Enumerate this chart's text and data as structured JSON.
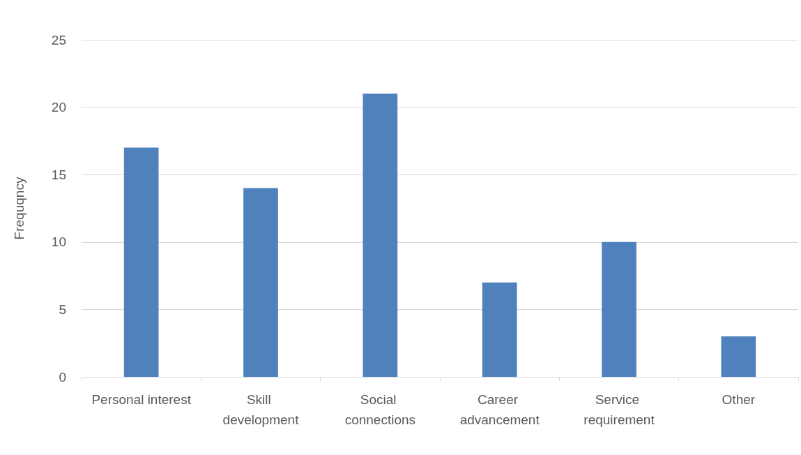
{
  "chart_data": {
    "type": "bar",
    "ylabel": "Frequqncy",
    "categories": [
      "Personal interest",
      "Skill development",
      "Social connections",
      "Career advancement",
      "Service requirement",
      "Other"
    ],
    "values": [
      17,
      14,
      21,
      7,
      10,
      3
    ],
    "color": "#4f81bd",
    "ylim": [
      0,
      25
    ],
    "yticks": [
      0,
      5,
      10,
      15,
      20,
      25
    ],
    "grid": "y"
  }
}
